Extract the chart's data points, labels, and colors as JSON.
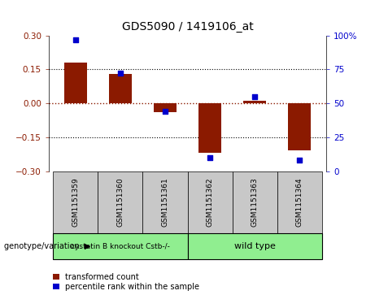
{
  "title": "GDS5090 / 1419106_at",
  "samples": [
    "GSM1151359",
    "GSM1151360",
    "GSM1151361",
    "GSM1151362",
    "GSM1151363",
    "GSM1151364"
  ],
  "bar_values": [
    0.18,
    0.13,
    -0.04,
    -0.22,
    0.01,
    -0.21
  ],
  "percentile_values": [
    97,
    72,
    44,
    10,
    55,
    8
  ],
  "bar_color": "#8B1A00",
  "dot_color": "#0000CC",
  "ylim_left": [
    -0.3,
    0.3
  ],
  "ylim_right": [
    0,
    100
  ],
  "yticks_left": [
    -0.3,
    -0.15,
    0,
    0.15,
    0.3
  ],
  "yticks_right": [
    0,
    25,
    50,
    75,
    100
  ],
  "ytick_labels_right": [
    "0",
    "25",
    "50",
    "75",
    "100%"
  ],
  "dotted_lines": [
    -0.15,
    0.15
  ],
  "group_labels": [
    "cystatin B knockout Cstb-/-",
    "wild type"
  ],
  "group_ranges": [
    [
      0,
      2
    ],
    [
      3,
      5
    ]
  ],
  "group_colors": [
    "#90EE90",
    "#90EE90"
  ],
  "group_label_row": "genotype/variation",
  "legend_bar_label": "transformed count",
  "legend_dot_label": "percentile rank within the sample",
  "bar_width": 0.5,
  "sample_box_color": "#C8C8C8",
  "background_color": "#FFFFFF"
}
